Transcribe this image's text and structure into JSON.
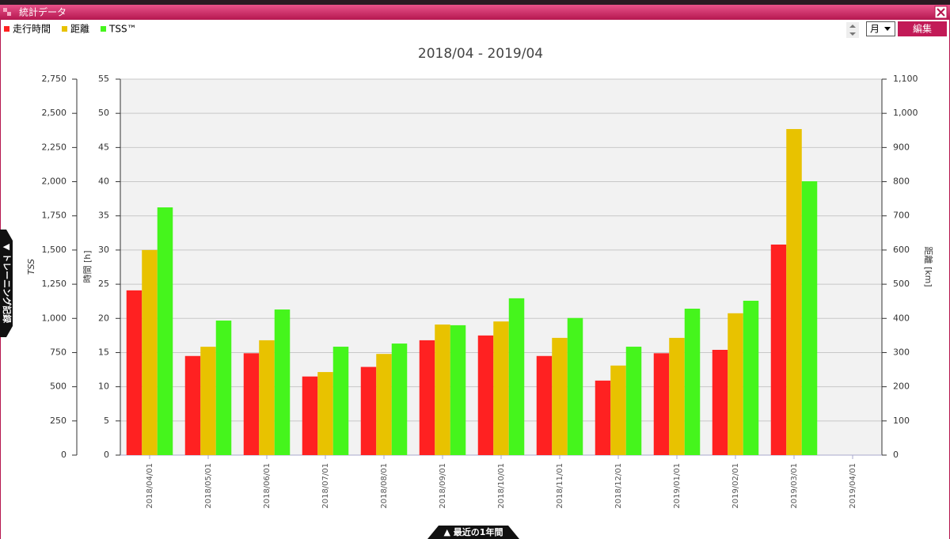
{
  "window": {
    "title": "統計データ",
    "period_select": "月",
    "edit_button": "編集",
    "side_tab": "▼ トレーニング記録",
    "bottom_tab": "▲ 最近の1年間"
  },
  "chart_data": {
    "type": "bar",
    "title": "2018/04 - 2019/04",
    "categories": [
      "2018/04/01",
      "2018/05/01",
      "2018/06/01",
      "2018/07/01",
      "2018/08/01",
      "2018/09/01",
      "2018/10/01",
      "2018/11/01",
      "2018/12/01",
      "2019/01/01",
      "2019/02/01",
      "2019/03/01",
      "2019/04/01"
    ],
    "series": [
      {
        "name": "走行時間",
        "color": "#ff2121",
        "axis": "y",
        "values": [
          24.1,
          14.5,
          14.9,
          11.5,
          12.9,
          16.8,
          17.5,
          14.5,
          10.9,
          14.9,
          15.4,
          30.8,
          0
        ]
      },
      {
        "name": "距離",
        "color": "#e8c200",
        "axis": "y2",
        "values": [
          600,
          317,
          336,
          243,
          296,
          382,
          391,
          343,
          262,
          343,
          415,
          954,
          0
        ]
      },
      {
        "name": "TSS™",
        "color": "#45f51c",
        "axis": "y3",
        "values": [
          1812,
          984,
          1065,
          793,
          816,
          950,
          1147,
          1003,
          793,
          1071,
          1129,
          2003,
          0
        ]
      }
    ],
    "ylabel": "時間 [h]",
    "ylim": [
      0,
      55
    ],
    "yticks": [
      0,
      5,
      10,
      15,
      20,
      25,
      30,
      35,
      40,
      45,
      50,
      55
    ],
    "y2label": "距離 [km]",
    "y2lim": [
      0,
      1100
    ],
    "y2ticks": [
      0,
      100,
      200,
      300,
      400,
      500,
      600,
      700,
      800,
      900,
      {
        "value": 1000,
        "label": "1,000"
      },
      {
        "value": 1100,
        "label": "1,100"
      }
    ],
    "y3label": "TSS",
    "y3lim": [
      0,
      2750
    ],
    "y3ticks": [
      0,
      250,
      500,
      750,
      {
        "value": 1000,
        "label": "1,000"
      },
      {
        "value": 1250,
        "label": "1,250"
      },
      {
        "value": 1500,
        "label": "1,500"
      },
      {
        "value": 1750,
        "label": "1,750"
      },
      {
        "value": 2000,
        "label": "2,000"
      },
      {
        "value": 2250,
        "label": "2,250"
      },
      {
        "value": 2500,
        "label": "2,500"
      },
      {
        "value": 2750,
        "label": "2,750"
      }
    ],
    "grid": true
  }
}
